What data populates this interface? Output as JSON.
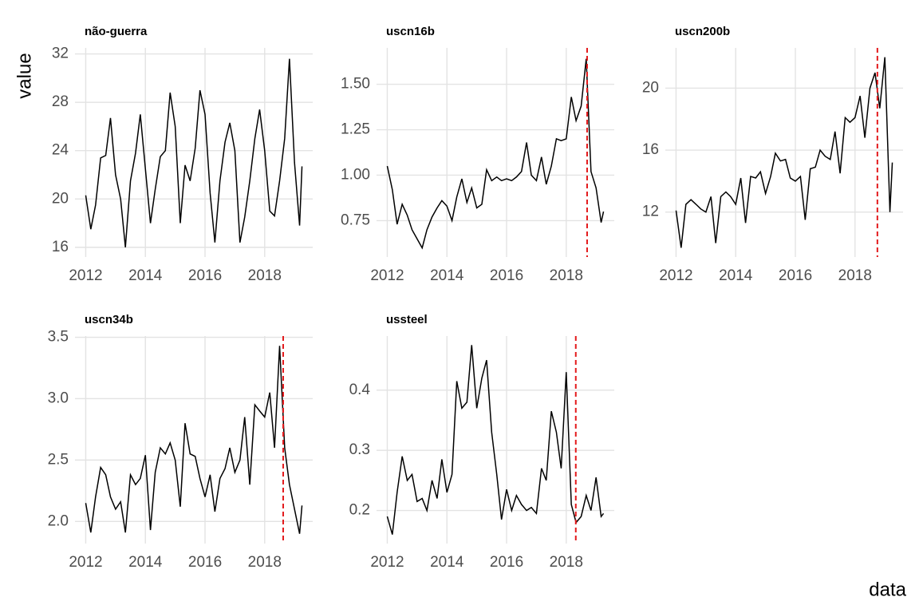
{
  "y_label": "value",
  "x_label": "data",
  "chart_data": [
    {
      "type": "line",
      "title": "não-guerra",
      "color": "#000000",
      "grid": true,
      "x": [
        2012,
        2012.17,
        2012.33,
        2012.5,
        2012.67,
        2012.83,
        2013,
        2013.17,
        2013.33,
        2013.5,
        2013.67,
        2013.83,
        2014,
        2014.17,
        2014.33,
        2014.5,
        2014.67,
        2014.83,
        2015,
        2015.17,
        2015.33,
        2015.5,
        2015.67,
        2015.83,
        2016,
        2016.17,
        2016.33,
        2016.5,
        2016.67,
        2016.83,
        2017,
        2017.17,
        2017.33,
        2017.5,
        2017.67,
        2017.83,
        2018,
        2018.17,
        2018.33,
        2018.5,
        2018.67,
        2018.83,
        2019,
        2019.17,
        2019.25
      ],
      "values": [
        20.3,
        17.5,
        19.5,
        23.4,
        23.6,
        26.7,
        22,
        20,
        16,
        21.5,
        23.8,
        27,
        22.5,
        18,
        20.8,
        23.5,
        24,
        28.8,
        26,
        18,
        22.8,
        21.5,
        24.2,
        29,
        27,
        20.5,
        16.4,
        21.5,
        24.7,
        26.3,
        24,
        16.4,
        18.5,
        21.5,
        25,
        27.4,
        24,
        19,
        18.6,
        21.5,
        25,
        31.6,
        23,
        17.8,
        22.7
      ],
      "xlim": [
        2011.64,
        2019.61
      ],
      "xticks": [
        2012,
        2014,
        2016,
        2018
      ],
      "ylim": [
        15.2,
        32.5
      ],
      "yticks": [
        16,
        20,
        24,
        28,
        32
      ]
    },
    {
      "type": "line",
      "title": "uscn16b",
      "color": "#000000",
      "grid": true,
      "vline": 2018.7,
      "vline_color": "#e31a1c",
      "x": [
        2012,
        2012.17,
        2012.33,
        2012.5,
        2012.67,
        2012.83,
        2013,
        2013.17,
        2013.33,
        2013.5,
        2013.67,
        2013.83,
        2014,
        2014.17,
        2014.33,
        2014.5,
        2014.67,
        2014.83,
        2015,
        2015.17,
        2015.33,
        2015.5,
        2015.67,
        2015.83,
        2016,
        2016.17,
        2016.33,
        2016.5,
        2016.67,
        2016.83,
        2017,
        2017.17,
        2017.33,
        2017.5,
        2017.67,
        2017.83,
        2018,
        2018.17,
        2018.33,
        2018.5,
        2018.67,
        2018.83,
        2019,
        2019.17,
        2019.25
      ],
      "values": [
        1.05,
        0.92,
        0.73,
        0.84,
        0.78,
        0.7,
        0.65,
        0.6,
        0.7,
        0.77,
        0.82,
        0.86,
        0.83,
        0.75,
        0.88,
        0.98,
        0.85,
        0.93,
        0.82,
        0.84,
        1.03,
        0.97,
        0.99,
        0.97,
        0.98,
        0.97,
        0.99,
        1.02,
        1.18,
        1.0,
        0.97,
        1.1,
        0.95,
        1.05,
        1.2,
        1.19,
        1.2,
        1.43,
        1.3,
        1.38,
        1.64,
        1.02,
        0.93,
        0.74,
        0.8
      ],
      "xlim": [
        2011.64,
        2019.61
      ],
      "xticks": [
        2012,
        2014,
        2016,
        2018
      ],
      "ylim": [
        0.55,
        1.7
      ],
      "yticks": [
        0.75,
        {
          "value": 1,
          "label": "1.00"
        },
        1.25,
        {
          "value": 1.5,
          "label": "1.50"
        }
      ]
    },
    {
      "type": "line",
      "title": "uscn200b",
      "color": "#000000",
      "grid": true,
      "vline": 2018.75,
      "vline_color": "#e31a1c",
      "x": [
        2012,
        2012.17,
        2012.33,
        2012.5,
        2012.67,
        2012.83,
        2013,
        2013.17,
        2013.33,
        2013.5,
        2013.67,
        2013.83,
        2014,
        2014.17,
        2014.33,
        2014.5,
        2014.67,
        2014.83,
        2015,
        2015.17,
        2015.33,
        2015.5,
        2015.67,
        2015.83,
        2016,
        2016.17,
        2016.33,
        2016.5,
        2016.67,
        2016.83,
        2017,
        2017.17,
        2017.33,
        2017.5,
        2017.67,
        2017.83,
        2018,
        2018.17,
        2018.33,
        2018.5,
        2018.67,
        2018.83,
        2019,
        2019.17,
        2019.25
      ],
      "values": [
        12.1,
        9.7,
        12.5,
        12.8,
        12.5,
        12.2,
        12,
        13,
        10,
        13,
        13.3,
        13,
        12.5,
        14.2,
        11.3,
        14.3,
        14.2,
        14.6,
        13.2,
        14.3,
        15.8,
        15.3,
        15.4,
        14.2,
        14,
        14.3,
        11.5,
        14.8,
        14.9,
        16,
        15.6,
        15.4,
        17.2,
        14.5,
        18.1,
        17.8,
        18.1,
        19.5,
        16.8,
        20,
        21,
        18.7,
        22,
        12,
        15.2
      ],
      "xlim": [
        2011.64,
        2019.61
      ],
      "xticks": [
        2012,
        2014,
        2016,
        2018
      ],
      "ylim": [
        9.1,
        22.6
      ],
      "yticks": [
        12,
        16,
        20
      ]
    },
    {
      "type": "line",
      "title": "uscn34b",
      "color": "#000000",
      "grid": true,
      "vline": 2018.62,
      "vline_color": "#e31a1c",
      "x": [
        2012,
        2012.17,
        2012.33,
        2012.5,
        2012.67,
        2012.83,
        2013,
        2013.17,
        2013.33,
        2013.5,
        2013.67,
        2013.83,
        2014,
        2014.17,
        2014.33,
        2014.5,
        2014.67,
        2014.83,
        2015,
        2015.17,
        2015.33,
        2015.5,
        2015.67,
        2015.83,
        2016,
        2016.17,
        2016.33,
        2016.5,
        2016.67,
        2016.83,
        2017,
        2017.17,
        2017.33,
        2017.5,
        2017.67,
        2017.83,
        2018,
        2018.17,
        2018.33,
        2018.5,
        2018.67,
        2018.83,
        2019,
        2019.17,
        2019.25
      ],
      "values": [
        2.15,
        1.91,
        2.2,
        2.44,
        2.38,
        2.2,
        2.1,
        2.16,
        1.91,
        2.38,
        2.3,
        2.35,
        2.54,
        1.93,
        2.4,
        2.6,
        2.55,
        2.64,
        2.5,
        2.12,
        2.8,
        2.55,
        2.53,
        2.35,
        2.2,
        2.38,
        2.08,
        2.35,
        2.43,
        2.6,
        2.4,
        2.5,
        2.85,
        2.3,
        2.95,
        2.9,
        2.85,
        3.05,
        2.6,
        3.43,
        2.6,
        2.3,
        2.1,
        1.9,
        2.13
      ],
      "xlim": [
        2011.64,
        2019.61
      ],
      "xticks": [
        2012,
        2014,
        2016,
        2018
      ],
      "ylim": [
        1.82,
        3.51
      ],
      "yticks": [
        {
          "value": 2,
          "label": "2.0"
        },
        2.5,
        {
          "value": 3,
          "label": "3.0"
        },
        3.5
      ]
    },
    {
      "type": "line",
      "title": "ussteel",
      "color": "#000000",
      "grid": true,
      "vline": 2018.32,
      "vline_color": "#e31a1c",
      "x": [
        2012,
        2012.17,
        2012.33,
        2012.5,
        2012.67,
        2012.83,
        2013,
        2013.17,
        2013.33,
        2013.5,
        2013.67,
        2013.83,
        2014,
        2014.17,
        2014.33,
        2014.5,
        2014.67,
        2014.83,
        2015,
        2015.17,
        2015.33,
        2015.5,
        2015.67,
        2015.83,
        2016,
        2016.17,
        2016.33,
        2016.5,
        2016.67,
        2016.83,
        2017,
        2017.17,
        2017.33,
        2017.5,
        2017.67,
        2017.83,
        2018,
        2018.17,
        2018.33,
        2018.5,
        2018.67,
        2018.83,
        2019,
        2019.17,
        2019.25
      ],
      "values": [
        0.19,
        0.16,
        0.23,
        0.29,
        0.25,
        0.26,
        0.215,
        0.22,
        0.2,
        0.25,
        0.22,
        0.285,
        0.23,
        0.26,
        0.415,
        0.37,
        0.38,
        0.475,
        0.37,
        0.42,
        0.45,
        0.33,
        0.26,
        0.185,
        0.235,
        0.2,
        0.225,
        0.21,
        0.2,
        0.205,
        0.195,
        0.27,
        0.25,
        0.365,
        0.33,
        0.27,
        0.43,
        0.21,
        0.18,
        0.19,
        0.225,
        0.2,
        0.255,
        0.19,
        0.195
      ],
      "xlim": [
        2011.64,
        2019.61
      ],
      "xticks": [
        2012,
        2014,
        2016,
        2018
      ],
      "ylim": [
        0.145,
        0.49
      ],
      "yticks": [
        0.2,
        0.3,
        0.4
      ]
    }
  ]
}
